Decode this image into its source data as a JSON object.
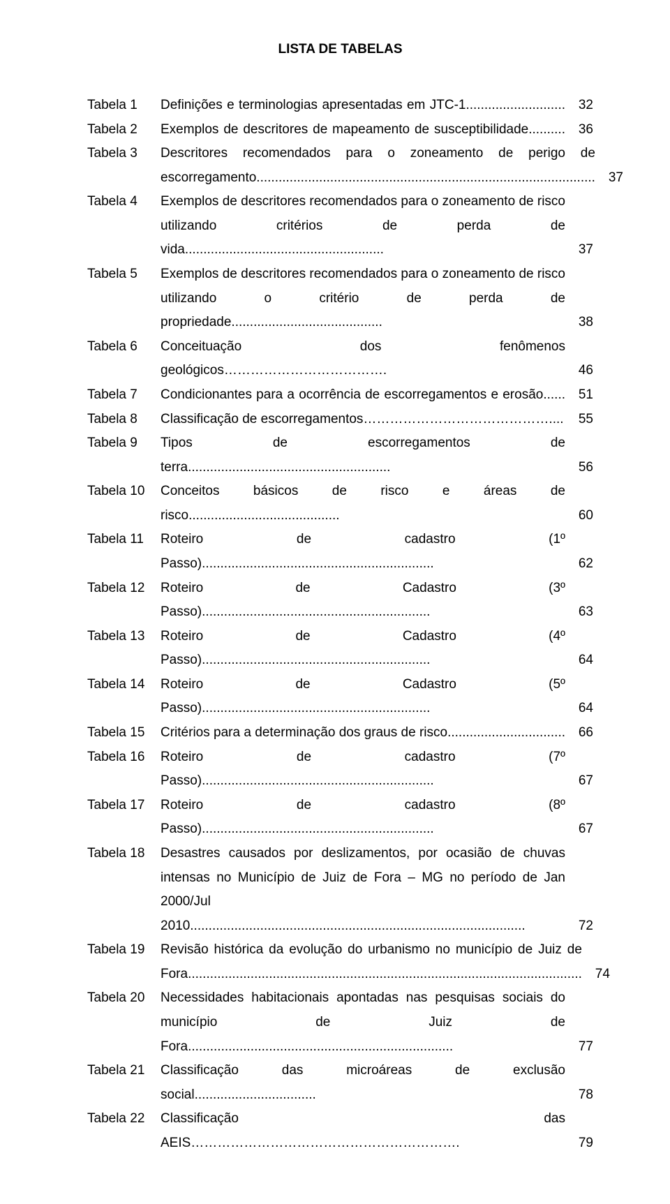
{
  "title": "LISTA DE TABELAS",
  "rows": [
    {
      "label": "Tabela 1",
      "desc": "Definições e terminologias apresentadas em JTC-1...........................",
      "page": "32",
      "justify": true
    },
    {
      "label": "Tabela 2",
      "desc": "Exemplos de descritores de mapeamento de susceptibilidade..........",
      "page": "36",
      "justify": true
    },
    {
      "label": "Tabela 3",
      "desc": "Descritores recomendados para o zoneamento de perigo de escorregamento............................................................................................",
      "page": "37",
      "justify": true
    },
    {
      "label": "Tabela 4",
      "desc": "Exemplos de descritores recomendados para o zoneamento de risco utilizando critérios de perda de vida......................................................",
      "page": "37",
      "justify": true
    },
    {
      "label": "Tabela 5",
      "desc": "Exemplos de descritores recomendados para o zoneamento de risco utilizando o critério de perda de propriedade.........................................",
      "page": "38",
      "justify": true
    },
    {
      "label": "Tabela 6",
      "desc": "Conceituação dos fenômenos geológicos……………………………….",
      "page": "46",
      "justify": false
    },
    {
      "label": "Tabela 7",
      "desc": "Condicionantes para a ocorrência de escorregamentos e erosão......",
      "page": "51",
      "justify": true
    },
    {
      "label": "Tabela 8",
      "desc": "Classificação de escorregamentos……………………………………....",
      "page": "55",
      "justify": false
    },
    {
      "label": "Tabela 9",
      "desc": "Tipos de escorregamentos de terra.......................................................",
      "page": "56",
      "justify": true
    },
    {
      "label": "Tabela 10",
      "desc": "Conceitos básicos de risco e áreas de risco.........................................",
      "page": "60",
      "justify": true
    },
    {
      "label": "Tabela 11",
      "desc": "Roteiro de cadastro (1º Passo)...............................................................",
      "page": "62",
      "justify": true
    },
    {
      "label": "Tabela 12",
      "desc": "Roteiro de Cadastro (3º Passo)..............................................................",
      "page": "63",
      "justify": true
    },
    {
      "label": "Tabela 13",
      "desc": "Roteiro de Cadastro (4º Passo)..............................................................",
      "page": "64",
      "justify": true
    },
    {
      "label": "Tabela 14",
      "desc": "Roteiro de Cadastro (5º Passo)..............................................................",
      "page": "64",
      "justify": true
    },
    {
      "label": "Tabela 15",
      "desc": "Critérios para a determinação dos graus de risco................................",
      "page": "66",
      "justify": true
    },
    {
      "label": "Tabela 16",
      "desc": "Roteiro de cadastro (7º Passo)...............................................................",
      "page": "67",
      "justify": true
    },
    {
      "label": "Tabela 17",
      "desc": "Roteiro de cadastro (8º Passo)...............................................................",
      "page": "67",
      "justify": true
    },
    {
      "label": "Tabela 18",
      "desc": "Desastres causados por deslizamentos, por ocasião de chuvas intensas no Município de Juiz de Fora – MG no período de Jan 2000/Jul 2010...........................................................................................",
      "page": "72",
      "justify": true
    },
    {
      "label": "Tabela 19",
      "desc": "Revisão histórica da evolução do urbanismo no município de Juiz de Fora...........................................................................................................",
      "page": "74",
      "justify": true
    },
    {
      "label": "Tabela 20",
      "desc": "Necessidades habitacionais apontadas nas pesquisas sociais do município de Juiz de Fora........................................................................",
      "page": "77",
      "justify": true
    },
    {
      "label": "Tabela 21",
      "desc": "Classificação das microáreas de exclusão social.................................",
      "page": "78",
      "justify": true
    },
    {
      "label": "Tabela 22",
      "desc": "Classificação das AEIS…………………………………………………….",
      "page": "79",
      "justify": false
    }
  ]
}
